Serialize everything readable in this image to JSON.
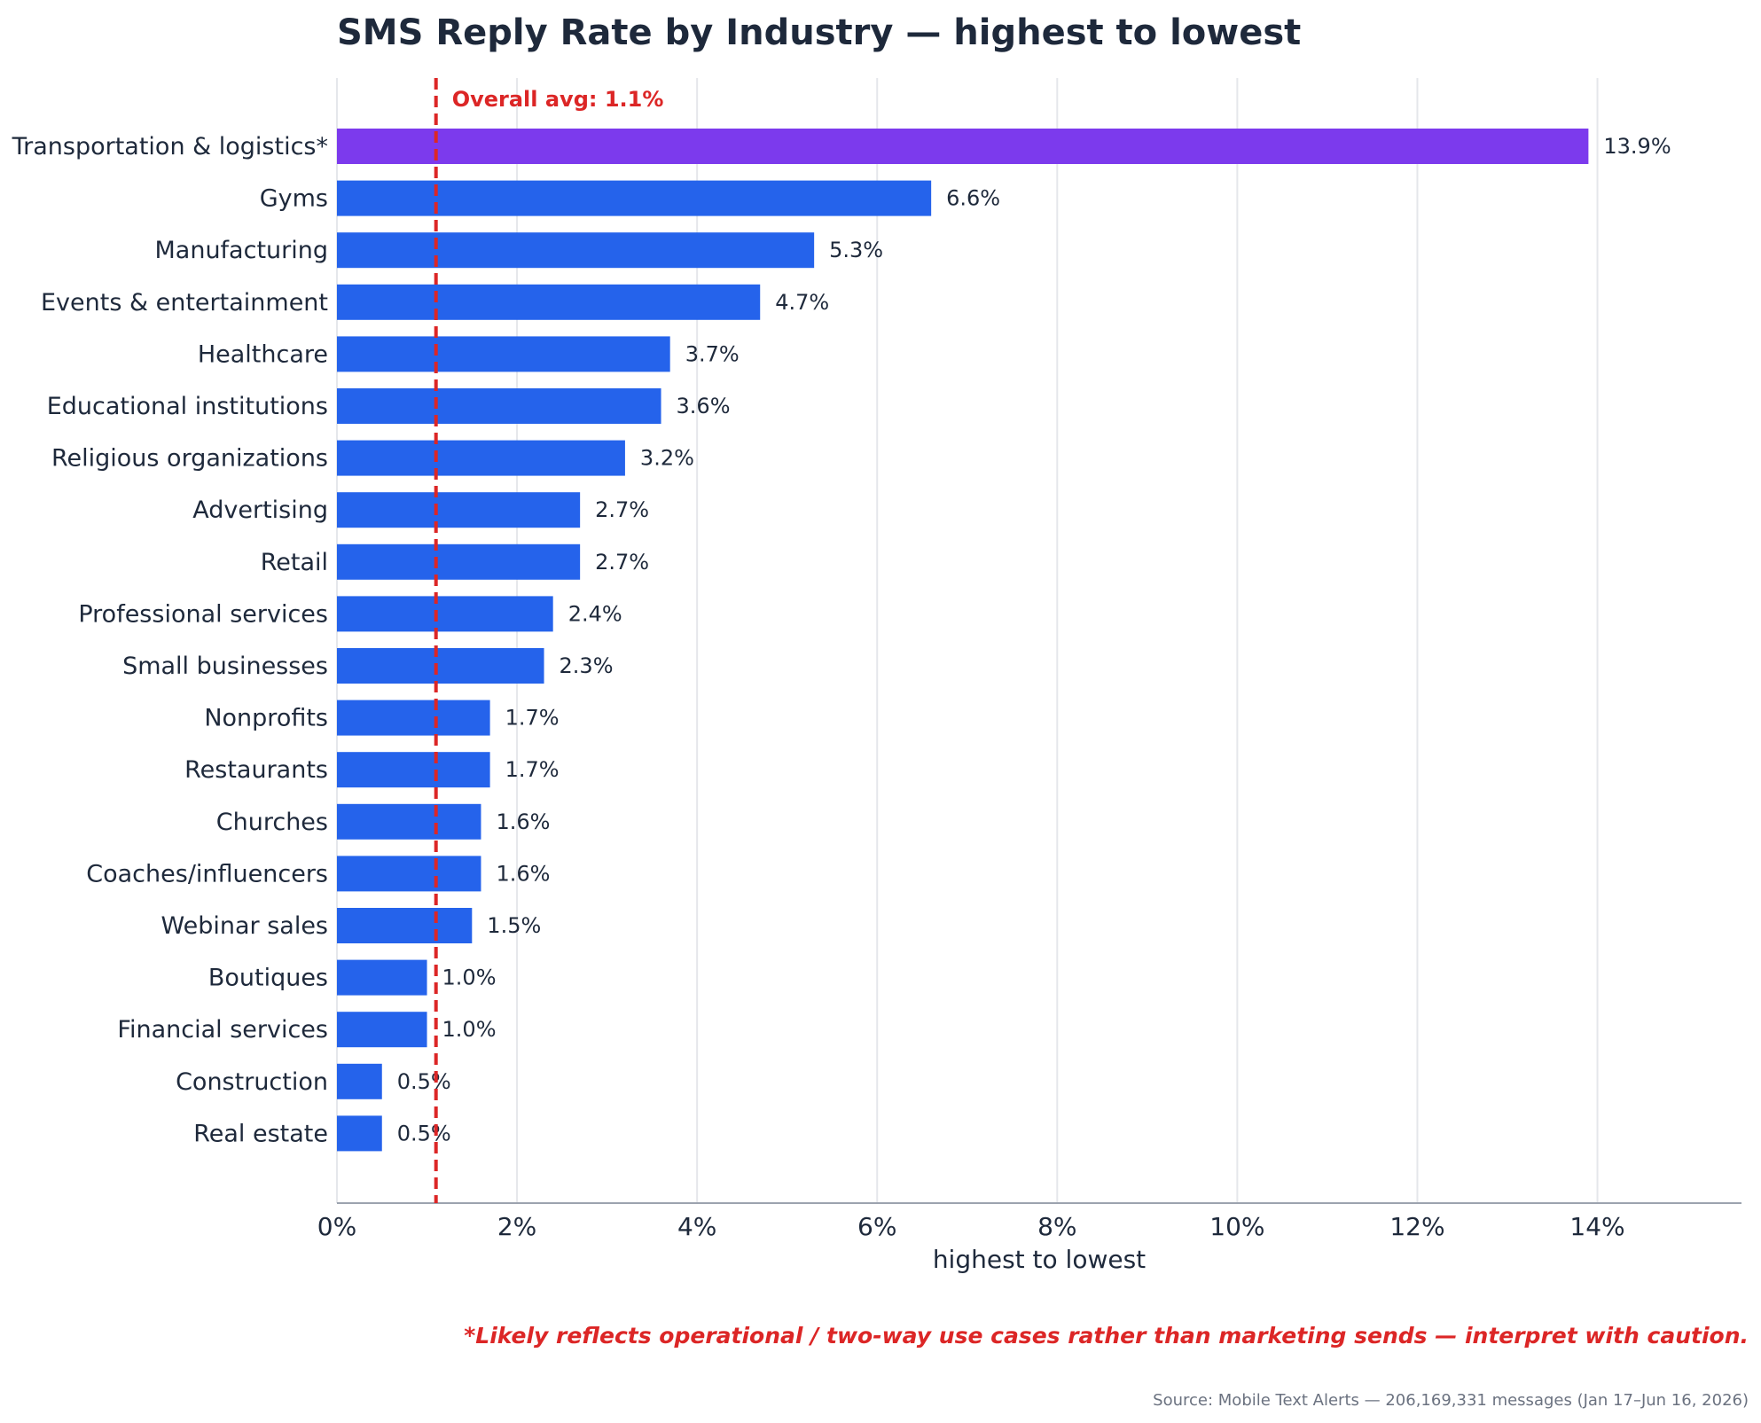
{
  "chart_data": {
    "type": "bar",
    "orientation": "horizontal",
    "title": "SMS Reply Rate by Industry — highest to lowest",
    "xlabel": "highest to lowest",
    "ylabel": "",
    "xlim": [
      0,
      15.6
    ],
    "x_ticks": [
      "0%",
      "2%",
      "4%",
      "6%",
      "8%",
      "10%",
      "12%",
      "14%"
    ],
    "x_tick_values": [
      0,
      2,
      4,
      6,
      8,
      10,
      12,
      14
    ],
    "grid": "vertical",
    "categories": [
      "Transportation & logistics*",
      "Gyms",
      "Manufacturing",
      "Events & entertainment",
      "Healthcare",
      "Educational institutions",
      "Religious organizations",
      "Advertising",
      "Retail",
      "Professional services",
      "Small businesses",
      "Nonprofits",
      "Restaurants",
      "Churches",
      "Coaches/influencers",
      "Webinar sales",
      "Boutiques",
      "Financial services",
      "Construction",
      "Real estate"
    ],
    "values": [
      13.9,
      6.6,
      5.3,
      4.7,
      3.7,
      3.6,
      3.2,
      2.7,
      2.7,
      2.4,
      2.3,
      1.7,
      1.7,
      1.6,
      1.6,
      1.5,
      1.0,
      1.0,
      0.5,
      0.5
    ],
    "value_labels": [
      "13.9%",
      "6.6%",
      "5.3%",
      "4.7%",
      "3.7%",
      "3.6%",
      "3.2%",
      "2.7%",
      "2.7%",
      "2.4%",
      "2.3%",
      "1.7%",
      "1.7%",
      "1.6%",
      "1.6%",
      "1.5%",
      "1.0%",
      "1.0%",
      "0.5%",
      "0.5%"
    ],
    "highlight_index": 0,
    "colors": {
      "bar": "#2563eb",
      "highlight": "#7c3aed",
      "average_line": "#dc2626"
    },
    "reference_line": {
      "value": 1.1,
      "label": "Overall avg: 1.1%"
    },
    "footnote": "*Likely reflects operational / two-way use cases rather than marketing sends — interpret with caution.",
    "source": "Source: Mobile Text Alerts — 206,169,331 messages (Jan 17–Jun 16, 2026)"
  }
}
